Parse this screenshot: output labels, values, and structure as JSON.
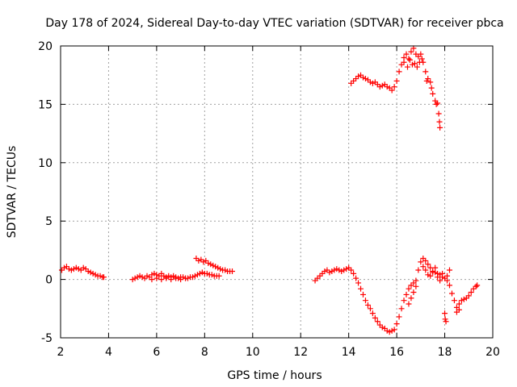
{
  "chart_data": {
    "type": "scatter",
    "title": "Day 178 of 2024, Sidereal Day-to-day VTEC variation (SDTVAR) for receiver pbca",
    "xlabel": "GPS time / hours",
    "ylabel": "SDTVAR / TECUs",
    "xlim": [
      2,
      20
    ],
    "ylim": [
      -5,
      20
    ],
    "xticks": [
      2,
      4,
      6,
      8,
      10,
      12,
      14,
      16,
      18,
      20
    ],
    "yticks": [
      -5,
      0,
      5,
      10,
      15,
      20
    ],
    "grid": true,
    "marker": "+",
    "series": [
      {
        "name": "SDTVAR",
        "color": "#ff0000",
        "points": [
          [
            2.05,
            0.8
          ],
          [
            2.15,
            1.0
          ],
          [
            2.25,
            1.1
          ],
          [
            2.35,
            0.9
          ],
          [
            2.45,
            0.8
          ],
          [
            2.55,
            0.9
          ],
          [
            2.65,
            1.0
          ],
          [
            2.75,
            0.9
          ],
          [
            2.85,
            0.8
          ],
          [
            2.95,
            1.0
          ],
          [
            3.05,
            0.9
          ],
          [
            3.15,
            0.7
          ],
          [
            3.25,
            0.6
          ],
          [
            3.35,
            0.5
          ],
          [
            3.45,
            0.4
          ],
          [
            3.55,
            0.3
          ],
          [
            3.65,
            0.3
          ],
          [
            3.75,
            0.2
          ],
          [
            3.8,
            0.2
          ],
          [
            5.0,
            0.0
          ],
          [
            5.1,
            0.1
          ],
          [
            5.2,
            0.2
          ],
          [
            5.3,
            0.3
          ],
          [
            5.4,
            0.2
          ],
          [
            5.5,
            0.1
          ],
          [
            5.6,
            0.3
          ],
          [
            5.7,
            0.2
          ],
          [
            5.8,
            0.4
          ],
          [
            5.9,
            0.5
          ],
          [
            6.0,
            0.4
          ],
          [
            6.1,
            0.3
          ],
          [
            6.2,
            0.5
          ],
          [
            6.3,
            0.3
          ],
          [
            6.4,
            0.2
          ],
          [
            6.5,
            0.3
          ],
          [
            6.6,
            0.2
          ],
          [
            6.7,
            0.3
          ],
          [
            6.8,
            0.2
          ],
          [
            6.9,
            0.1
          ],
          [
            7.0,
            0.2
          ],
          [
            7.1,
            0.2
          ],
          [
            7.2,
            0.1
          ],
          [
            7.3,
            0.1
          ],
          [
            7.4,
            0.2
          ],
          [
            7.5,
            0.2
          ],
          [
            7.6,
            0.3
          ],
          [
            7.7,
            0.4
          ],
          [
            7.8,
            0.5
          ],
          [
            7.9,
            0.6
          ],
          [
            8.0,
            0.5
          ],
          [
            8.1,
            0.5
          ],
          [
            8.2,
            0.4
          ],
          [
            8.3,
            0.4
          ],
          [
            8.4,
            0.3
          ],
          [
            8.5,
            0.3
          ],
          [
            8.6,
            0.3
          ],
          [
            5.8,
            0.0
          ],
          [
            6.0,
            0.1
          ],
          [
            6.2,
            0.0
          ],
          [
            6.4,
            0.1
          ],
          [
            6.6,
            0.0
          ],
          [
            6.8,
            0.1
          ],
          [
            7.0,
            0.0
          ],
          [
            7.2,
            0.1
          ],
          [
            7.65,
            1.8
          ],
          [
            7.75,
            1.6
          ],
          [
            7.85,
            1.7
          ],
          [
            7.95,
            1.5
          ],
          [
            8.05,
            1.6
          ],
          [
            8.15,
            1.4
          ],
          [
            8.25,
            1.3
          ],
          [
            8.35,
            1.2
          ],
          [
            8.45,
            1.1
          ],
          [
            8.55,
            1.0
          ],
          [
            8.65,
            0.9
          ],
          [
            8.75,
            0.8
          ],
          [
            8.85,
            0.8
          ],
          [
            8.95,
            0.7
          ],
          [
            9.05,
            0.7
          ],
          [
            9.15,
            0.7
          ],
          [
            12.6,
            -0.1
          ],
          [
            12.7,
            0.1
          ],
          [
            12.8,
            0.3
          ],
          [
            12.9,
            0.5
          ],
          [
            13.0,
            0.7
          ],
          [
            13.1,
            0.8
          ],
          [
            13.2,
            0.6
          ],
          [
            13.3,
            0.7
          ],
          [
            13.4,
            0.8
          ],
          [
            13.5,
            0.9
          ],
          [
            13.6,
            0.8
          ],
          [
            13.7,
            0.7
          ],
          [
            13.8,
            0.8
          ],
          [
            13.9,
            0.9
          ],
          [
            14.0,
            1.0
          ],
          [
            14.1,
            0.8
          ],
          [
            14.2,
            0.5
          ],
          [
            14.3,
            0.1
          ],
          [
            14.4,
            -0.3
          ],
          [
            14.5,
            -0.8
          ],
          [
            14.6,
            -1.3
          ],
          [
            14.7,
            -1.8
          ],
          [
            14.8,
            -2.2
          ],
          [
            14.9,
            -2.5
          ],
          [
            15.0,
            -2.9
          ],
          [
            15.1,
            -3.3
          ],
          [
            15.2,
            -3.6
          ],
          [
            15.3,
            -3.9
          ],
          [
            15.4,
            -4.1
          ],
          [
            15.5,
            -4.2
          ],
          [
            15.6,
            -4.4
          ],
          [
            15.7,
            -4.5
          ],
          [
            15.8,
            -4.4
          ],
          [
            15.9,
            -4.3
          ],
          [
            16.0,
            -3.8
          ],
          [
            16.1,
            -3.2
          ],
          [
            16.2,
            -2.5
          ],
          [
            16.3,
            -1.8
          ],
          [
            16.4,
            -1.3
          ],
          [
            16.5,
            -0.8
          ],
          [
            16.6,
            -0.5
          ],
          [
            16.7,
            -0.3
          ],
          [
            16.8,
            -0.1
          ],
          [
            16.9,
            0.8
          ],
          [
            17.0,
            1.5
          ],
          [
            17.1,
            1.8
          ],
          [
            17.2,
            1.6
          ],
          [
            17.3,
            1.3
          ],
          [
            17.4,
            1.0
          ],
          [
            17.5,
            0.7
          ],
          [
            17.6,
            0.6
          ],
          [
            17.7,
            0.5
          ],
          [
            17.8,
            0.4
          ],
          [
            17.9,
            0.2
          ],
          [
            18.0,
            0.1
          ],
          [
            18.1,
            -0.1
          ],
          [
            18.2,
            -0.5
          ],
          [
            18.3,
            -1.2
          ],
          [
            18.4,
            -1.8
          ],
          [
            18.5,
            -2.4
          ],
          [
            18.6,
            -2.1
          ],
          [
            18.7,
            -1.8
          ],
          [
            18.8,
            -1.7
          ],
          [
            18.9,
            -1.6
          ],
          [
            19.0,
            -1.4
          ],
          [
            19.1,
            -1.1
          ],
          [
            19.2,
            -0.8
          ],
          [
            19.3,
            -0.6
          ],
          [
            19.35,
            -0.5
          ],
          [
            16.5,
            -2.1
          ],
          [
            16.6,
            -1.6
          ],
          [
            16.7,
            -1.1
          ],
          [
            16.8,
            -0.6
          ],
          [
            17.1,
            1.1
          ],
          [
            17.2,
            0.8
          ],
          [
            17.3,
            0.4
          ],
          [
            17.4,
            0.3
          ],
          [
            17.5,
            0.6
          ],
          [
            17.6,
            1.0
          ],
          [
            17.7,
            0.2
          ],
          [
            17.8,
            -0.1
          ],
          [
            17.9,
            0.5
          ],
          [
            18.0,
            -2.9
          ],
          [
            18.02,
            -3.4
          ],
          [
            18.05,
            -3.6
          ],
          [
            18.1,
            0.3
          ],
          [
            18.2,
            0.8
          ],
          [
            18.5,
            -2.8
          ],
          [
            18.6,
            -2.6
          ],
          [
            14.1,
            16.8
          ],
          [
            14.2,
            17.0
          ],
          [
            14.3,
            17.2
          ],
          [
            14.4,
            17.4
          ],
          [
            14.5,
            17.5
          ],
          [
            14.6,
            17.3
          ],
          [
            14.7,
            17.2
          ],
          [
            14.8,
            17.1
          ],
          [
            14.9,
            16.9
          ],
          [
            15.0,
            16.8
          ],
          [
            15.1,
            16.9
          ],
          [
            15.2,
            16.7
          ],
          [
            15.3,
            16.5
          ],
          [
            15.4,
            16.6
          ],
          [
            15.5,
            16.7
          ],
          [
            15.6,
            16.5
          ],
          [
            15.7,
            16.4
          ],
          [
            15.8,
            16.2
          ],
          [
            15.9,
            16.5
          ],
          [
            16.0,
            17.0
          ],
          [
            16.1,
            17.8
          ],
          [
            16.2,
            18.4
          ],
          [
            16.3,
            19.0
          ],
          [
            16.4,
            19.3
          ],
          [
            16.5,
            18.9
          ],
          [
            16.6,
            19.5
          ],
          [
            16.7,
            19.8
          ],
          [
            16.8,
            19.3
          ],
          [
            16.9,
            19.1
          ],
          [
            17.0,
            19.3
          ],
          [
            17.1,
            18.6
          ],
          [
            17.2,
            17.8
          ],
          [
            17.3,
            17.2
          ],
          [
            17.4,
            16.9
          ],
          [
            17.5,
            15.9
          ],
          [
            17.6,
            15.3
          ],
          [
            17.7,
            15.1
          ],
          [
            17.75,
            14.2
          ],
          [
            17.78,
            13.5
          ],
          [
            17.8,
            13.0
          ],
          [
            16.3,
            18.6
          ],
          [
            16.45,
            18.2
          ],
          [
            16.55,
            18.8
          ],
          [
            16.65,
            18.4
          ],
          [
            16.75,
            18.5
          ],
          [
            16.85,
            18.2
          ],
          [
            16.95,
            18.6
          ],
          [
            17.05,
            18.9
          ],
          [
            17.25,
            17.0
          ],
          [
            17.45,
            16.4
          ],
          [
            17.65,
            15.0
          ]
        ]
      }
    ]
  }
}
